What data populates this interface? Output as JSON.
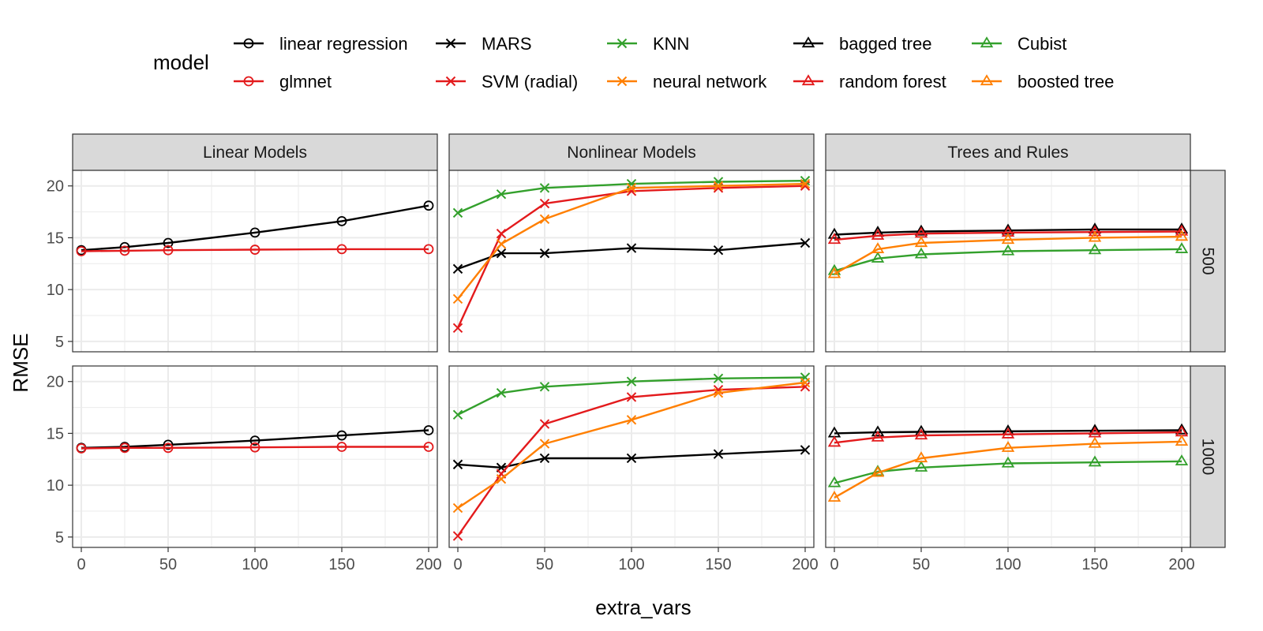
{
  "chart_data": {
    "type": "line",
    "x_label": "extra_vars",
    "y_label": "RMSE",
    "legend_title": "model",
    "legend_position": "top",
    "x_ticks": [
      0,
      50,
      100,
      150,
      200
    ],
    "y_ticks": [
      5,
      10,
      15,
      20
    ],
    "x_range": [
      -5,
      205
    ],
    "y_range": [
      4,
      21.5
    ],
    "grid": true,
    "facet_columns": [
      "Linear Models",
      "Nonlinear Models",
      "Trees and Rules"
    ],
    "facet_rows": [
      "500",
      "1000"
    ],
    "colors": {
      "black": "#000000",
      "red": "#e31a1c",
      "green": "#33a02c",
      "orange": "#ff7f00",
      "strip_fill": "#d9d9d9",
      "grid_major": "#ebebeb"
    },
    "x": [
      0,
      25,
      50,
      100,
      150,
      200
    ],
    "legend_layout": [
      [
        "linear regression",
        "MARS",
        "KNN",
        "bagged tree",
        "Cubist"
      ],
      [
        "glmnet",
        "SVM (radial)",
        "neural network",
        "random forest",
        "boosted tree"
      ]
    ],
    "series": [
      {
        "name": "linear regression",
        "group": "Linear Models",
        "color": "black",
        "shape": "circle",
        "values": {
          "500": [
            13.8,
            14.1,
            14.5,
            15.5,
            16.6,
            18.1
          ],
          "1000": [
            13.6,
            13.7,
            13.9,
            14.3,
            14.8,
            15.3
          ]
        }
      },
      {
        "name": "glmnet",
        "group": "Linear Models",
        "color": "red",
        "shape": "circle",
        "values": {
          "500": [
            13.7,
            13.75,
            13.8,
            13.85,
            13.9,
            13.9
          ],
          "1000": [
            13.55,
            13.6,
            13.6,
            13.65,
            13.7,
            13.7
          ]
        }
      },
      {
        "name": "MARS",
        "group": "Nonlinear Models",
        "color": "black",
        "shape": "cross",
        "values": {
          "500": [
            12.0,
            13.5,
            13.5,
            14.0,
            13.8,
            14.5
          ],
          "1000": [
            12.0,
            11.7,
            12.6,
            12.6,
            13.0,
            13.4
          ]
        }
      },
      {
        "name": "SVM (radial)",
        "group": "Nonlinear Models",
        "color": "red",
        "shape": "cross",
        "values": {
          "500": [
            6.3,
            15.4,
            18.3,
            19.5,
            19.8,
            20.0
          ],
          "1000": [
            5.1,
            11.1,
            15.9,
            18.5,
            19.2,
            19.5
          ]
        }
      },
      {
        "name": "KNN",
        "group": "Nonlinear Models",
        "color": "green",
        "shape": "cross",
        "values": {
          "500": [
            17.4,
            19.2,
            19.8,
            20.2,
            20.4,
            20.5
          ],
          "1000": [
            16.8,
            18.9,
            19.5,
            20.0,
            20.3,
            20.4
          ]
        }
      },
      {
        "name": "neural network",
        "group": "Nonlinear Models",
        "color": "orange",
        "shape": "cross",
        "values": {
          "500": [
            9.1,
            14.4,
            16.8,
            19.8,
            20.0,
            20.2
          ],
          "1000": [
            7.8,
            10.6,
            14.0,
            16.3,
            18.9,
            19.9
          ]
        }
      },
      {
        "name": "bagged tree",
        "group": "Trees and Rules",
        "color": "black",
        "shape": "triangle",
        "values": {
          "500": [
            15.3,
            15.5,
            15.6,
            15.7,
            15.8,
            15.8
          ],
          "1000": [
            15.0,
            15.1,
            15.15,
            15.2,
            15.25,
            15.3
          ]
        }
      },
      {
        "name": "random forest",
        "group": "Trees and Rules",
        "color": "red",
        "shape": "triangle",
        "values": {
          "500": [
            14.8,
            15.2,
            15.4,
            15.5,
            15.55,
            15.6
          ],
          "1000": [
            14.1,
            14.6,
            14.8,
            14.9,
            15.0,
            15.1
          ]
        }
      },
      {
        "name": "Cubist",
        "group": "Trees and Rules",
        "color": "green",
        "shape": "triangle",
        "values": {
          "500": [
            11.8,
            13.0,
            13.4,
            13.7,
            13.8,
            13.9
          ],
          "1000": [
            10.2,
            11.3,
            11.7,
            12.1,
            12.2,
            12.3
          ]
        }
      },
      {
        "name": "boosted tree",
        "group": "Trees and Rules",
        "color": "orange",
        "shape": "triangle",
        "values": {
          "500": [
            11.5,
            13.9,
            14.5,
            14.8,
            15.0,
            15.1
          ],
          "1000": [
            8.8,
            11.2,
            12.6,
            13.6,
            14.0,
            14.2
          ]
        }
      }
    ]
  }
}
